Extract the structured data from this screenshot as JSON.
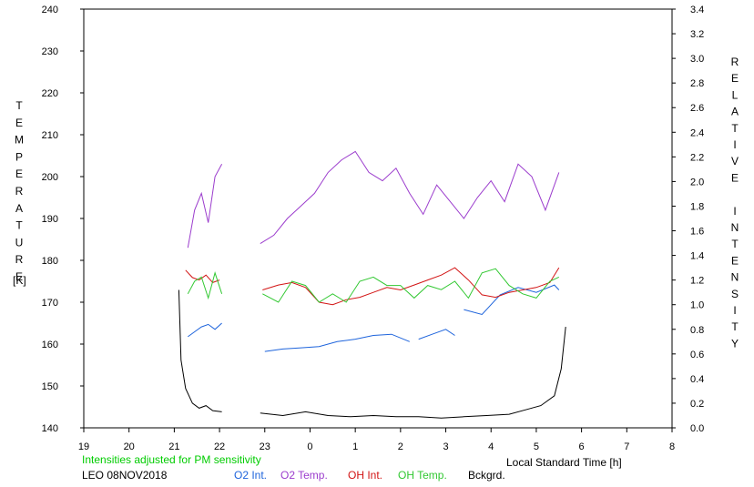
{
  "chart_data": {
    "type": "line",
    "title": "",
    "xlabel": "Local Standard Time [h]",
    "ylabel_left": "TEMPERATURE",
    "ylabel_left_unit": "[K]",
    "ylabel_right": "RELATIVE INTENSITY",
    "x_ticks": [
      19,
      20,
      21,
      22,
      23,
      24,
      25,
      26,
      27,
      28,
      29,
      30,
      31,
      32
    ],
    "x_tick_labels": [
      "19",
      "20",
      "21",
      "22",
      "23",
      "0",
      "1",
      "2",
      "3",
      "4",
      "5",
      "6",
      "7",
      "8"
    ],
    "xlim": [
      19,
      32
    ],
    "ylim_left": [
      140,
      240
    ],
    "yticks_left": [
      140,
      150,
      160,
      170,
      180,
      190,
      200,
      210,
      220,
      230,
      240
    ],
    "ylim_right": [
      0.0,
      3.4
    ],
    "yticks_right": [
      "0.0",
      "0.2",
      "0.4",
      "0.6",
      "0.8",
      "1.0",
      "1.2",
      "1.4",
      "1.6",
      "1.8",
      "2.0",
      "2.2",
      "2.4",
      "2.6",
      "2.8",
      "3.0",
      "3.2",
      "3.4"
    ],
    "grid": false,
    "note": "Intensities adjusted for PM sensitivity",
    "station_label": "LEO 08NOV2018",
    "legend_placement": "bottom",
    "series": [
      {
        "name": "O2 Int.",
        "color": "#1e64dc",
        "axis": "right",
        "segments": [
          {
            "x": [
              21.3,
              21.45,
              21.6,
              21.75,
              21.9,
              22.05
            ],
            "y": [
              0.74,
              0.78,
              0.82,
              0.84,
              0.8,
              0.85
            ]
          },
          {
            "x": [
              23.0,
              23.4,
              23.8,
              24.2,
              24.6,
              25.0,
              25.4,
              25.8,
              26.2
            ],
            "y": [
              0.62,
              0.64,
              0.65,
              0.66,
              0.7,
              0.72,
              0.75,
              0.76,
              0.7
            ]
          },
          {
            "x": [
              26.4,
              26.7,
              27.0,
              27.2
            ],
            "y": [
              0.72,
              0.76,
              0.8,
              0.75
            ]
          },
          {
            "x": [
              27.4,
              27.8,
              28.2,
              28.6,
              29.0,
              29.4,
              29.5
            ],
            "y": [
              0.96,
              0.92,
              1.08,
              1.14,
              1.1,
              1.16,
              1.12
            ]
          }
        ]
      },
      {
        "name": "O2 Temp.",
        "color": "#9b3ccd",
        "axis": "left",
        "segments": [
          {
            "x": [
              21.3,
              21.45,
              21.6,
              21.75,
              21.9,
              22.05
            ],
            "y": [
              183,
              192,
              196,
              189,
              200,
              203
            ]
          },
          {
            "x": [
              22.9,
              23.2,
              23.5,
              23.8,
              24.1,
              24.4,
              24.7,
              25.0,
              25.3,
              25.6,
              25.9,
              26.2,
              26.5,
              26.8,
              27.1,
              27.4,
              27.7,
              28.0,
              28.3,
              28.6,
              28.9,
              29.2,
              29.5
            ],
            "y": [
              184,
              186,
              190,
              193,
              196,
              201,
              204,
              206,
              201,
              199,
              202,
              196,
              191,
              198,
              194,
              190,
              195,
              199,
              194,
              203,
              200,
              192,
              201
            ]
          }
        ]
      },
      {
        "name": "OH Int.",
        "color": "#d21414",
        "axis": "right",
        "segments": [
          {
            "x": [
              21.25,
              21.4,
              21.55,
              21.7,
              21.85,
              22.0
            ],
            "y": [
              1.28,
              1.22,
              1.2,
              1.24,
              1.18,
              1.2
            ]
          },
          {
            "x": [
              22.95,
              23.3,
              23.6,
              23.9,
              24.2,
              24.5,
              24.8,
              25.1,
              25.4,
              25.7,
              26.0,
              26.3,
              26.6,
              26.9,
              27.2,
              27.5,
              27.8,
              28.1,
              28.4,
              28.7,
              29.0,
              29.3,
              29.5
            ],
            "y": [
              1.12,
              1.16,
              1.18,
              1.14,
              1.02,
              1.0,
              1.04,
              1.06,
              1.1,
              1.14,
              1.12,
              1.16,
              1.2,
              1.24,
              1.3,
              1.2,
              1.08,
              1.06,
              1.1,
              1.12,
              1.14,
              1.18,
              1.3
            ]
          }
        ]
      },
      {
        "name": "OH Temp.",
        "color": "#32c832",
        "axis": "left",
        "segments": [
          {
            "x": [
              21.3,
              21.45,
              21.6,
              21.75,
              21.9,
              22.05
            ],
            "y": [
              172,
              175,
              176,
              171,
              177,
              172
            ]
          },
          {
            "x": [
              22.95,
              23.3,
              23.6,
              23.9,
              24.2,
              24.5,
              24.8,
              25.1,
              25.4,
              25.7,
              26.0,
              26.3,
              26.6,
              26.9,
              27.2,
              27.5,
              27.8,
              28.1,
              28.4,
              28.7,
              29.0,
              29.3,
              29.5
            ],
            "y": [
              172,
              170,
              175,
              174,
              170,
              172,
              170,
              175,
              176,
              174,
              174,
              171,
              174,
              173,
              175,
              171,
              177,
              178,
              174,
              172,
              171,
              175,
              176
            ]
          }
        ]
      },
      {
        "name": "Bckgrd.",
        "color": "#000000",
        "axis": "right",
        "segments": [
          {
            "x": [
              21.1,
              21.15,
              21.25,
              21.4,
              21.55,
              21.7,
              21.85,
              22.05
            ],
            "y": [
              1.12,
              0.55,
              0.32,
              0.2,
              0.16,
              0.18,
              0.14,
              0.13
            ]
          },
          {
            "x": [
              22.9,
              23.4,
              23.9,
              24.4,
              24.9,
              25.4,
              25.9,
              26.4,
              26.9,
              27.4,
              27.9,
              28.4,
              28.8,
              29.1,
              29.4,
              29.55,
              29.65
            ],
            "y": [
              0.12,
              0.1,
              0.13,
              0.1,
              0.09,
              0.1,
              0.09,
              0.09,
              0.08,
              0.09,
              0.1,
              0.11,
              0.15,
              0.18,
              0.26,
              0.48,
              0.82
            ]
          }
        ]
      }
    ]
  }
}
